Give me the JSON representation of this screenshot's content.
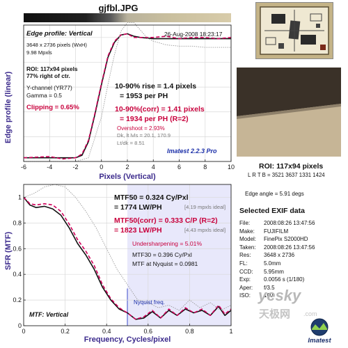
{
  "image_title": "gjfbl.JPG",
  "edge_panel": {
    "title": "Edge profile: Vertical",
    "datetime": "26-Aug-2008 18:23:17",
    "dims": "3648 x 2736 pixels (WxH)",
    "mpxls": "9.98 Mpxls",
    "roi": "ROI: 117x94 pixels",
    "roi_pos": "77% right of ctr.",
    "channel": "Y-channel (YR77)",
    "gamma": "Gamma = 0.5",
    "clipping_label": "Clipping =",
    "clipping_value": "0.65%",
    "rise_line1": "10-90% rise = 1.4 pixels",
    "rise_line2": "= 1953 per PH",
    "corr_line1": "10-90%(corr) = 1.41 pixels",
    "corr_line2": "= 1934 per PH (R=2)",
    "overshoot": "Overshoot = 2.93%",
    "dk_lt_lvls": "Dk, lt lvls = 20.1, 170.9",
    "lt_dk": "Lt/dk = 8.51",
    "imatest": "Imatest 2.2.3 Pro"
  },
  "mtf_panel": {
    "mtf50_line1": "MTF50 = 0.324 Cy/Pxl",
    "mtf50_line2": "= 1774 LW/PH",
    "mtf50_ideal": "[4.19 mpxls ideal]",
    "corr_line1": "MTF50(corr) = 0.333 C/P (R=2)",
    "corr_line2": "= 1823 LW/PH",
    "corr_ideal": "[4.43 mpxls ideal]",
    "undersharpening": "Undersharpening = 5.01%",
    "mtf30": "MTF30 = 0.396 Cy/Pxl",
    "mtf_nyquist": "MTF at Nyquist = 0.0981",
    "nyquist_label": "Nyquist freq.",
    "caption": "MTF: Vertical"
  },
  "side": {
    "roi_title": "ROI: 117x94 pixels",
    "lrtb": "L R T B = 3521 3637 1331 1424",
    "edge_angle": "Edge angle = 5.91 degs",
    "exif_title": "Selected EXIF data",
    "exif": [
      {
        "k": "File:",
        "v": "2008:08:26 13:47:56"
      },
      {
        "k": "Make:",
        "v": "FUJIFILM"
      },
      {
        "k": "Model:",
        "v": "FinePix S2000HD"
      },
      {
        "k": "Taken:",
        "v": "2008:08:26 13:47:56"
      },
      {
        "k": "Res:",
        "v": "3648 x 2736"
      },
      {
        "k": "FL:",
        "v": "5.0mm"
      },
      {
        "k": "CCD:",
        "v": "5.95mm"
      },
      {
        "k": "Exp:",
        "v": "0.0056 s (1/180)"
      },
      {
        "k": "Aper:",
        "v": "f/3.5"
      },
      {
        "k": "ISO:",
        "v": "100"
      }
    ],
    "logo_text": "Imatest",
    "watermark_site": "yesky",
    "watermark_cn": "天极网",
    "watermark_com": ".com"
  },
  "colors": {
    "axis_label": "#3b2a8c",
    "red": "#c8003c",
    "blue": "#1a2ea8"
  },
  "chart_data": [
    {
      "type": "line",
      "xlabel": "Pixels (Vertical)",
      "ylabel": "Edge profile (linear)",
      "xlim": [
        -6,
        10
      ],
      "ylim": [
        0,
        1.1
      ],
      "xticks": [
        -6,
        -4,
        -2,
        0,
        2,
        4,
        6,
        8,
        10
      ],
      "grid": true,
      "series": [
        {
          "style": "black-solid",
          "x": [
            -6,
            -4,
            -3,
            -2,
            -1.5,
            -1,
            -0.5,
            0,
            0.5,
            1,
            1.5,
            2,
            2.5,
            3,
            4,
            5,
            6,
            7,
            8,
            9,
            10
          ],
          "y": [
            0.03,
            0.03,
            0.03,
            0.03,
            0.05,
            0.16,
            0.38,
            0.62,
            0.84,
            0.96,
            1.02,
            1.03,
            1.01,
            1.0,
            0.99,
            0.99,
            0.99,
            0.99,
            0.99,
            0.99,
            0.99
          ]
        },
        {
          "style": "red-dashed",
          "x": [
            -6,
            -4,
            -3,
            -2,
            -1.5,
            -1,
            -0.5,
            0,
            0.5,
            1,
            1.5,
            2,
            2.5,
            3,
            4,
            5,
            6,
            7,
            8,
            9,
            10
          ],
          "y": [
            0.03,
            0.04,
            0.02,
            0.03,
            0.06,
            0.17,
            0.39,
            0.63,
            0.85,
            0.97,
            1.02,
            1.03,
            1.0,
            1.0,
            1.0,
            1.01,
            0.99,
            1.0,
            1.0,
            0.99,
            1.0
          ]
        },
        {
          "style": "gray-dotted",
          "x": [
            -6,
            -4,
            -2,
            -1,
            0,
            0.5,
            1,
            1.5,
            2,
            2.5,
            3,
            3.5,
            4,
            5,
            6,
            7,
            8,
            9,
            10
          ],
          "y": [
            0.0,
            0.0,
            0.0,
            0.03,
            0.36,
            0.62,
            0.86,
            1.05,
            1.12,
            1.12,
            1.06,
            1.0,
            0.97,
            0.94,
            0.93,
            0.93,
            0.92,
            0.92,
            0.92
          ]
        }
      ]
    },
    {
      "type": "line",
      "xlabel": "Frequency, Cycles/pixel",
      "ylabel": "SFR (MTF)",
      "xlim": [
        0,
        1
      ],
      "ylim": [
        0,
        1.1
      ],
      "xticks": [
        0,
        0.2,
        0.4,
        0.6,
        0.8,
        1
      ],
      "yticks": [
        0,
        0.2,
        0.4,
        0.6,
        0.8,
        1
      ],
      "grid": true,
      "nyquist": 0.5,
      "series": [
        {
          "style": "black-solid",
          "x": [
            0,
            0.03,
            0.06,
            0.1,
            0.14,
            0.18,
            0.22,
            0.26,
            0.3,
            0.34,
            0.38,
            0.42,
            0.46,
            0.5,
            0.54,
            0.58,
            0.62,
            0.66,
            0.7,
            0.74,
            0.78,
            0.82,
            0.86,
            0.9,
            0.94,
            0.97,
            1.0
          ],
          "y": [
            1.0,
            0.94,
            0.92,
            0.93,
            0.91,
            0.86,
            0.76,
            0.64,
            0.55,
            0.44,
            0.3,
            0.2,
            0.13,
            0.1,
            0.05,
            0.06,
            0.11,
            0.06,
            0.12,
            0.08,
            0.13,
            0.1,
            0.12,
            0.08,
            0.15,
            0.08,
            0.12
          ]
        },
        {
          "style": "red-dashed",
          "x": [
            0,
            0.03,
            0.06,
            0.1,
            0.14,
            0.18,
            0.22,
            0.26,
            0.3,
            0.34,
            0.38,
            0.42,
            0.46,
            0.5,
            0.54,
            0.58,
            0.62,
            0.66,
            0.7,
            0.74,
            0.78,
            0.82,
            0.86,
            0.9,
            0.94,
            0.97,
            1.0
          ],
          "y": [
            1.0,
            0.95,
            0.94,
            0.95,
            0.94,
            0.89,
            0.79,
            0.67,
            0.58,
            0.47,
            0.32,
            0.21,
            0.14,
            0.1,
            0.05,
            0.07,
            0.12,
            0.06,
            0.13,
            0.08,
            0.14,
            0.1,
            0.13,
            0.08,
            0.16,
            0.09,
            0.13
          ]
        },
        {
          "style": "gray-dotted",
          "x": [
            0,
            0.05,
            0.1,
            0.15,
            0.2,
            0.25,
            0.3,
            0.35,
            0.4,
            0.45,
            0.5,
            0.55,
            0.6,
            0.65,
            0.7,
            0.75,
            0.8,
            0.85,
            0.9,
            0.95,
            1.0
          ],
          "y": [
            1.0,
            1.03,
            1.08,
            1.1,
            1.08,
            1.0,
            0.89,
            0.76,
            0.6,
            0.44,
            0.32,
            0.2,
            0.18,
            0.14,
            0.16,
            0.12,
            0.2,
            0.14,
            0.18,
            0.12,
            0.16
          ]
        }
      ]
    }
  ]
}
